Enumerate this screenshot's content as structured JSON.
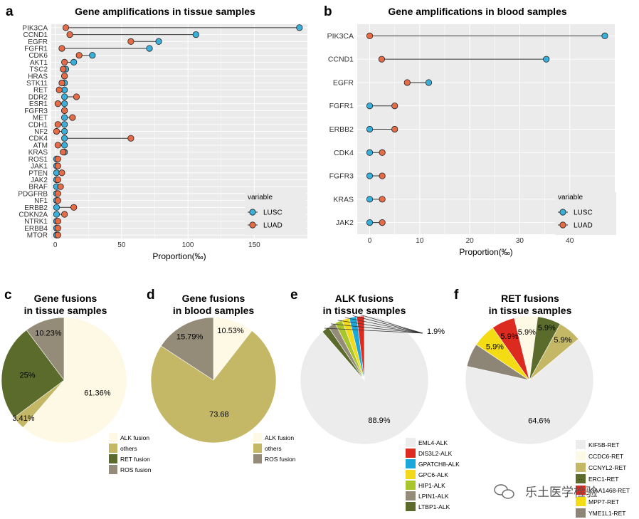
{
  "labels": {
    "a": "a",
    "b": "b",
    "c": "c",
    "d": "d",
    "e": "e",
    "f": "f"
  },
  "watermark": "乐土医学检验",
  "colors": {
    "lusc": "#3AAFD9",
    "luad": "#E66C48",
    "panel_bg": "#EBEBEB",
    "grid": "#FFFFFF",
    "alk_fusion": "#FEF9E4",
    "others": "#C4B765",
    "ret_fusion": "#5A6B2B",
    "ros_fusion": "#948C79",
    "pie_gray": "#ECECEC"
  },
  "chart_data": [
    {
      "id": "a",
      "type": "dumbbell",
      "title": "Gene amplifications in tissue samples",
      "xlabel": "Proportion(‰)",
      "ylabel": "",
      "xlim": [
        -3,
        190
      ],
      "xticks": [
        0,
        50,
        100,
        150
      ],
      "legend": {
        "title": "variable",
        "entries": [
          "LUSC",
          "LUAD"
        ],
        "position": "bottom-right"
      },
      "categories": [
        "PIK3CA",
        "CCND1",
        "EGFR",
        "FGFR1",
        "CDK6",
        "AKT1",
        "TSC2",
        "HRAS",
        "STK11",
        "RET",
        "DDR2",
        "ESR1",
        "FGFR3",
        "MET",
        "CDH1",
        "NF2",
        "CDK4",
        "ATM",
        "KRAS",
        "ROS1",
        "JAK1",
        "PTEN",
        "JAK2",
        "BRAF",
        "PDGFRB",
        "NF1",
        "ERBB2",
        "CDKN2A",
        "NTRK1",
        "ERBB4",
        "MTOR"
      ],
      "series": [
        {
          "name": "LUSC",
          "values": [
            184,
            106,
            78,
            71,
            28,
            14,
            8,
            7,
            7,
            7,
            7,
            7,
            7,
            7,
            7,
            7,
            7,
            7,
            7,
            1,
            1,
            1,
            1,
            1,
            1,
            1,
            1,
            1,
            1,
            1,
            1
          ]
        },
        {
          "name": "LUAD",
          "values": [
            8,
            11,
            57,
            5,
            18,
            7,
            6,
            7,
            5,
            3,
            16,
            2,
            7,
            13,
            2,
            1,
            57,
            2,
            6,
            2,
            2,
            5,
            2,
            4,
            2,
            2,
            14,
            7,
            2,
            2,
            2
          ]
        }
      ]
    },
    {
      "id": "b",
      "type": "dumbbell",
      "title": "Gene amplifications in blood samples",
      "xlabel": "Proportion(‰)",
      "ylabel": "",
      "xlim": [
        -2.5,
        49
      ],
      "xticks": [
        0,
        10,
        20,
        30,
        40
      ],
      "legend": {
        "title": "variable",
        "entries": [
          "LUSC",
          "LUAD"
        ],
        "position": "bottom-right"
      },
      "categories": [
        "PIK3CA",
        "CCND1",
        "EGFR",
        "FGFR1",
        "ERBB2",
        "CDK4",
        "FGFR3",
        "KRAS",
        "JAK2"
      ],
      "series": [
        {
          "name": "LUSC",
          "values": [
            47,
            35.3,
            11.8,
            0,
            0,
            0,
            0,
            0,
            0
          ]
        },
        {
          "name": "LUAD",
          "values": [
            0,
            2.4,
            7.5,
            5,
            5,
            2.5,
            2.5,
            2.5,
            2.5
          ]
        }
      ]
    },
    {
      "id": "c",
      "type": "pie",
      "title": "Gene fusions\nin tissue samples",
      "slices": [
        {
          "label": "ALK fusion",
          "value": 61.36,
          "text": "61.36%",
          "color": "#FEF9E4"
        },
        {
          "label": "others",
          "value": 3.41,
          "text": "3.41%",
          "color": "#C4B765"
        },
        {
          "label": "RET fusion",
          "value": 25,
          "text": "25%",
          "color": "#5A6B2B"
        },
        {
          "label": "ROS fusion",
          "value": 10.23,
          "text": "10.23%",
          "color": "#948C79"
        }
      ],
      "legend": [
        "ALK fusion",
        "others",
        "RET fusion",
        "ROS fusion"
      ]
    },
    {
      "id": "d",
      "type": "pie",
      "title": "Gene fusions\nin blood samples",
      "slices": [
        {
          "label": "ALK fusion",
          "value": 10.53,
          "text": "10.53%",
          "color": "#FEF9E4"
        },
        {
          "label": "others",
          "value": 73.68,
          "text": "73.68",
          "color": "#C4B765"
        },
        {
          "label": "ROS fusion",
          "value": 15.79,
          "text": "15.79%",
          "color": "#948C79"
        }
      ],
      "legend": [
        "ALK fusion",
        "others",
        "ROS fusion"
      ]
    },
    {
      "id": "e",
      "type": "pie",
      "title": "ALK fusions\nin tissue samples",
      "slices": [
        {
          "label": "EML4-ALK",
          "value": 88.9,
          "text": "88.9%",
          "color": "#ECECEC"
        },
        {
          "label": "LTBP1-ALK",
          "value": 1.9,
          "text": "",
          "color": "#5A6B2B"
        },
        {
          "label": "LPIN1-ALK",
          "value": 1.9,
          "text": "",
          "color": "#948C79"
        },
        {
          "label": "HIP1-ALK",
          "value": 1.9,
          "text": "",
          "color": "#A9C52D"
        },
        {
          "label": "GPC6-ALK",
          "value": 1.9,
          "text": "",
          "color": "#F2D91C"
        },
        {
          "label": "GPATCH8-ALK",
          "value": 1.9,
          "text": "",
          "color": "#1AA7D9"
        },
        {
          "label": "DIS3L2-ALK",
          "value": 1.9,
          "text": "",
          "color": "#DD2B20"
        }
      ],
      "callout": "1.9%",
      "legend": [
        "EML4-ALK",
        "DIS3L2-ALK",
        "GPATCH8-ALK",
        "GPC6-ALK",
        "HIP1-ALK",
        "LPIN1-ALK",
        "LTBP1-ALK"
      ]
    },
    {
      "id": "f",
      "type": "pie",
      "title": "RET fusions\nin tissue samples",
      "slices": [
        {
          "label": "KIF5B-RET",
          "value": 64.6,
          "text": "64.6%",
          "color": "#ECECEC"
        },
        {
          "label": "YME1L1-RET",
          "value": 5.9,
          "text": "",
          "color": "#8D8677"
        },
        {
          "label": "MPP7-RET",
          "value": 5.9,
          "text": "5.9%",
          "color": "#F3DC14"
        },
        {
          "label": "KIAA1468-RET",
          "value": 5.9,
          "text": "5.9%",
          "color": "#DC2A21"
        },
        {
          "label": "CCDC6-RET",
          "value": 5.9,
          "text": "5.9%",
          "color": "#FEF9E4"
        },
        {
          "label": "ERC1-RET",
          "value": 5.9,
          "text": "5.9%",
          "color": "#5A6B2B"
        },
        {
          "label": "CCNYL2-RET",
          "value": 5.9,
          "text": "5.9%",
          "color": "#C4B765"
        }
      ],
      "legend": [
        "KIF5B-RET",
        "CCDC6-RET",
        "CCNYL2-RET",
        "ERC1-RET",
        "KIAA1468-RET",
        "MPP7-RET",
        "YME1L1-RET"
      ]
    }
  ]
}
